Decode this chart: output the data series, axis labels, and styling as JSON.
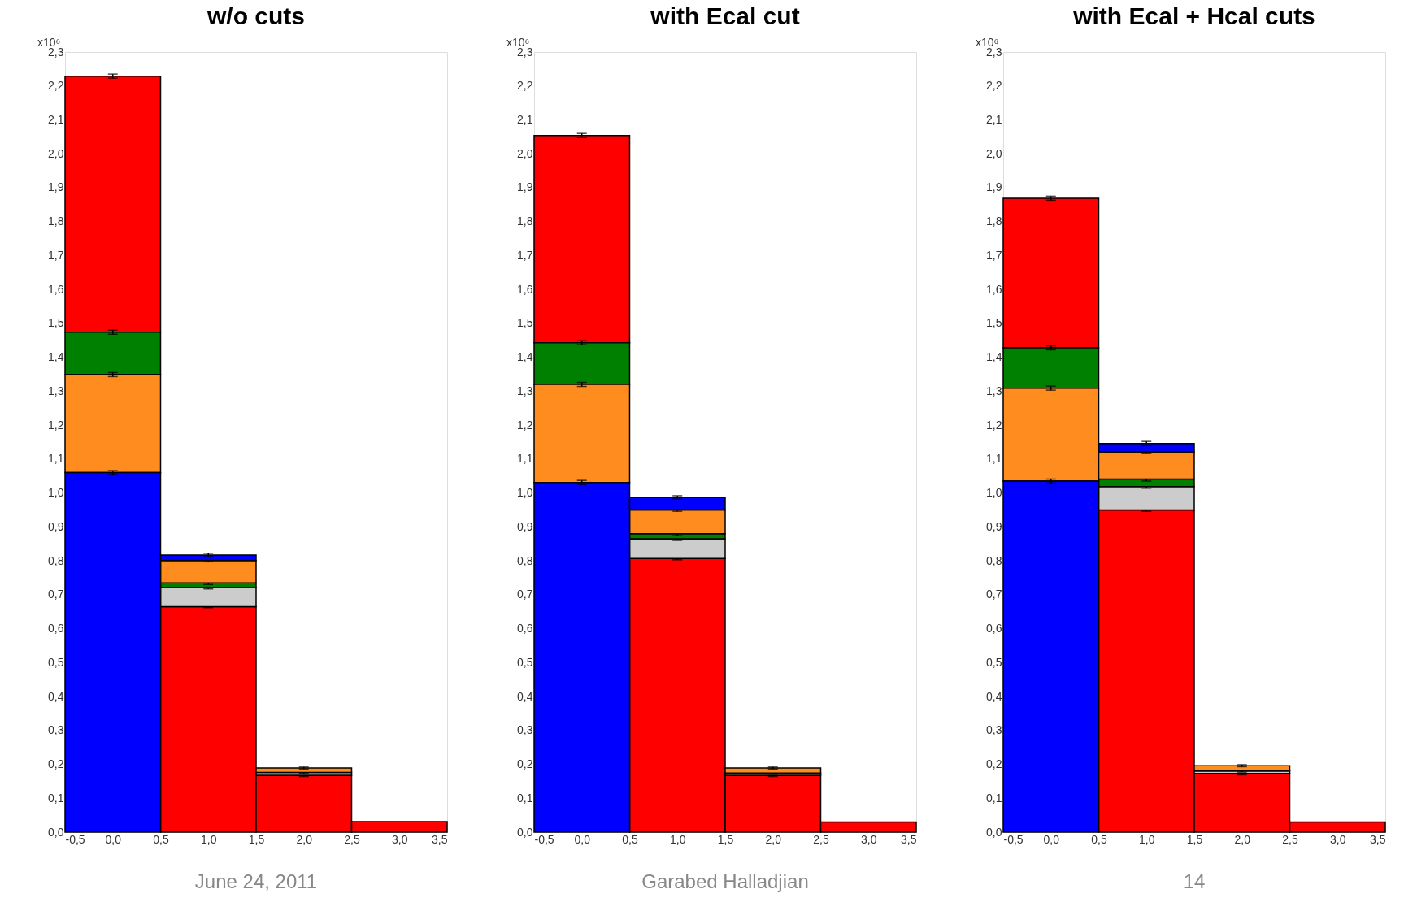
{
  "chart_data": [
    {
      "type": "histogram",
      "title": "w/o cuts",
      "ylabel": "x10⁶",
      "bins": [
        -0.5,
        0.5,
        1.5,
        2.5,
        3.5
      ],
      "xlim": [
        -0.5,
        3.5
      ],
      "xticks": [
        {
          "value": -0.5,
          "label": "-0,5"
        },
        {
          "value": 0,
          "label": "0,0"
        },
        {
          "value": 0.5,
          "label": "0,5"
        },
        {
          "value": 1,
          "label": "1,0"
        },
        {
          "value": 1.5,
          "label": "1,5"
        },
        {
          "value": 2,
          "label": "2,0"
        },
        {
          "value": 2.5,
          "label": "2,5"
        },
        {
          "value": 3,
          "label": "3,0"
        },
        {
          "value": 3.5,
          "label": "3,5"
        }
      ],
      "ylim": [
        0,
        2.3
      ],
      "yticks": [
        {
          "value": 0,
          "label": "0,0"
        },
        {
          "value": 0.1,
          "label": "0,1"
        },
        {
          "value": 0.2,
          "label": "0,2"
        },
        {
          "value": 0.3,
          "label": "0,3"
        },
        {
          "value": 0.4,
          "label": "0,4"
        },
        {
          "value": 0.5,
          "label": "0,5"
        },
        {
          "value": 0.6,
          "label": "0,6"
        },
        {
          "value": 0.7,
          "label": "0,7"
        },
        {
          "value": 0.8,
          "label": "0,8"
        },
        {
          "value": 0.9,
          "label": "0,9"
        },
        {
          "value": 1.0,
          "label": "1,0"
        },
        {
          "value": 1.1,
          "label": "1,1"
        },
        {
          "value": 1.2,
          "label": "1,2"
        },
        {
          "value": 1.3,
          "label": "1,3"
        },
        {
          "value": 1.4,
          "label": "1,4"
        },
        {
          "value": 1.5,
          "label": "1,5"
        },
        {
          "value": 1.6,
          "label": "1,6"
        },
        {
          "value": 1.7,
          "label": "1,7"
        },
        {
          "value": 1.8,
          "label": "1,8"
        },
        {
          "value": 1.9,
          "label": "1,9"
        },
        {
          "value": 2.0,
          "label": "2,0"
        },
        {
          "value": 2.1,
          "label": "2,1"
        },
        {
          "value": 2.2,
          "label": "2,2"
        },
        {
          "value": 2.3,
          "label": "2,3"
        }
      ],
      "series": [
        {
          "color": "#ff0000",
          "values": [
            0.755,
            0.665,
            0.168,
            0.031
          ],
          "base": [
            1.474,
            0,
            0,
            0
          ],
          "errors": [
            0.006,
            0.003,
            0.004,
            null
          ]
        },
        {
          "color": "#cccccc",
          "values": [
            null,
            0.056,
            0.008,
            null
          ],
          "base": [
            null,
            0.665,
            0.168,
            null
          ],
          "errors": [
            null,
            0.004,
            0.003,
            null
          ]
        },
        {
          "color": "#008000",
          "values": [
            0.125,
            0.014,
            null,
            null
          ],
          "base": [
            1.349,
            0.721,
            null,
            null
          ],
          "errors": [
            0.006,
            0.005,
            null,
            null
          ]
        },
        {
          "color": "#ff8c1e",
          "values": [
            0.289,
            0.066,
            0.013,
            null
          ],
          "base": [
            1.06,
            0.735,
            0.176,
            null
          ],
          "errors": [
            0.006,
            0.004,
            0.003,
            null
          ]
        },
        {
          "color": "#0000ff",
          "values": [
            1.06,
            0.016,
            null,
            null
          ],
          "base": [
            0,
            0.801,
            null,
            null
          ],
          "errors": [
            0.006,
            0.005,
            null,
            null
          ]
        }
      ],
      "annotations": [
        "June 24, 2011"
      ]
    },
    {
      "type": "histogram",
      "title": "with Ecal cut",
      "ylabel": "x10⁶",
      "bins": [
        -0.5,
        0.5,
        1.5,
        2.5,
        3.5
      ],
      "xlim": [
        -0.5,
        3.5
      ],
      "xticks": [
        {
          "value": -0.5,
          "label": "-0,5"
        },
        {
          "value": 0,
          "label": "0,0"
        },
        {
          "value": 0.5,
          "label": "0,5"
        },
        {
          "value": 1,
          "label": "1,0"
        },
        {
          "value": 1.5,
          "label": "1,5"
        },
        {
          "value": 2,
          "label": "2,0"
        },
        {
          "value": 2.5,
          "label": "2,5"
        },
        {
          "value": 3,
          "label": "3,0"
        },
        {
          "value": 3.5,
          "label": "3,5"
        }
      ],
      "ylim": [
        0,
        2.3
      ],
      "yticks": [
        {
          "value": 0,
          "label": "0,0"
        },
        {
          "value": 0.1,
          "label": "0,1"
        },
        {
          "value": 0.2,
          "label": "0,2"
        },
        {
          "value": 0.3,
          "label": "0,3"
        },
        {
          "value": 0.4,
          "label": "0,4"
        },
        {
          "value": 0.5,
          "label": "0,5"
        },
        {
          "value": 0.6,
          "label": "0,6"
        },
        {
          "value": 0.7,
          "label": "0,7"
        },
        {
          "value": 0.8,
          "label": "0,8"
        },
        {
          "value": 0.9,
          "label": "0,9"
        },
        {
          "value": 1.0,
          "label": "1,0"
        },
        {
          "value": 1.1,
          "label": "1,1"
        },
        {
          "value": 1.2,
          "label": "1,2"
        },
        {
          "value": 1.3,
          "label": "1,3"
        },
        {
          "value": 1.4,
          "label": "1,4"
        },
        {
          "value": 1.5,
          "label": "1,5"
        },
        {
          "value": 1.6,
          "label": "1,6"
        },
        {
          "value": 1.7,
          "label": "1,7"
        },
        {
          "value": 1.8,
          "label": "1,8"
        },
        {
          "value": 1.9,
          "label": "1,9"
        },
        {
          "value": 2.0,
          "label": "2,0"
        },
        {
          "value": 2.1,
          "label": "2,1"
        },
        {
          "value": 2.2,
          "label": "2,2"
        },
        {
          "value": 2.3,
          "label": "2,3"
        }
      ],
      "series": [
        {
          "color": "#ff0000",
          "values": [
            0.611,
            0.807,
            0.168,
            0.03
          ],
          "base": [
            1.443,
            0,
            0,
            0
          ],
          "errors": [
            0.006,
            0.004,
            0.004,
            null
          ]
        },
        {
          "color": "#cccccc",
          "values": [
            null,
            0.058,
            0.006,
            null
          ],
          "base": [
            null,
            0.807,
            0.168,
            null
          ],
          "errors": [
            null,
            0.005,
            0.003,
            null
          ]
        },
        {
          "color": "#008000",
          "values": [
            0.123,
            0.015,
            null,
            null
          ],
          "base": [
            1.32,
            0.865,
            null,
            null
          ],
          "errors": [
            0.006,
            0.006,
            null,
            null
          ]
        },
        {
          "color": "#ff8c1e",
          "values": [
            0.289,
            0.07,
            0.015,
            null
          ],
          "base": [
            1.031,
            0.88,
            0.174,
            null
          ],
          "errors": [
            0.006,
            0.004,
            0.003,
            null
          ]
        },
        {
          "color": "#0000ff",
          "values": [
            1.031,
            0.037,
            null,
            null
          ],
          "base": [
            0,
            0.95,
            null,
            null
          ],
          "errors": [
            0.006,
            0.005,
            null,
            null
          ]
        }
      ],
      "annotations": [
        "Garabed Halladjian"
      ]
    },
    {
      "type": "histogram",
      "title": "with Ecal + Hcal cuts",
      "ylabel": "x10⁶",
      "bins": [
        -0.5,
        0.5,
        1.5,
        2.5,
        3.5
      ],
      "xlim": [
        -0.5,
        3.5
      ],
      "xticks": [
        {
          "value": -0.5,
          "label": "-0,5"
        },
        {
          "value": 0,
          "label": "0,0"
        },
        {
          "value": 0.5,
          "label": "0,5"
        },
        {
          "value": 1,
          "label": "1,0"
        },
        {
          "value": 1.5,
          "label": "1,5"
        },
        {
          "value": 2,
          "label": "2,0"
        },
        {
          "value": 2.5,
          "label": "2,5"
        },
        {
          "value": 3,
          "label": "3,0"
        },
        {
          "value": 3.5,
          "label": "3,5"
        }
      ],
      "ylim": [
        0,
        2.3
      ],
      "yticks": [
        {
          "value": 0,
          "label": "0,0"
        },
        {
          "value": 0.1,
          "label": "0,1"
        },
        {
          "value": 0.2,
          "label": "0,2"
        },
        {
          "value": 0.3,
          "label": "0,3"
        },
        {
          "value": 0.4,
          "label": "0,4"
        },
        {
          "value": 0.5,
          "label": "0,5"
        },
        {
          "value": 0.6,
          "label": "0,6"
        },
        {
          "value": 0.7,
          "label": "0,7"
        },
        {
          "value": 0.8,
          "label": "0,8"
        },
        {
          "value": 0.9,
          "label": "0,9"
        },
        {
          "value": 1.0,
          "label": "1,0"
        },
        {
          "value": 1.1,
          "label": "1,1"
        },
        {
          "value": 1.2,
          "label": "1,2"
        },
        {
          "value": 1.3,
          "label": "1,3"
        },
        {
          "value": 1.4,
          "label": "1,4"
        },
        {
          "value": 1.5,
          "label": "1,5"
        },
        {
          "value": 1.6,
          "label": "1,6"
        },
        {
          "value": 1.7,
          "label": "1,7"
        },
        {
          "value": 1.8,
          "label": "1,8"
        },
        {
          "value": 1.9,
          "label": "1,9"
        },
        {
          "value": 2.0,
          "label": "2,0"
        },
        {
          "value": 2.1,
          "label": "2,1"
        },
        {
          "value": 2.2,
          "label": "2,2"
        },
        {
          "value": 2.3,
          "label": "2,3"
        }
      ],
      "series": [
        {
          "color": "#ff0000",
          "values": [
            0.441,
            0.95,
            0.173,
            0.03
          ],
          "base": [
            1.428,
            0,
            0,
            0
          ],
          "errors": [
            0.006,
            0.004,
            0.004,
            null
          ]
        },
        {
          "color": "#cccccc",
          "values": [
            null,
            0.069,
            0.007,
            null
          ],
          "base": [
            null,
            0.95,
            0.173,
            null
          ],
          "errors": [
            null,
            0.005,
            0.003,
            null
          ]
        },
        {
          "color": "#008000",
          "values": [
            0.119,
            0.022,
            null,
            null
          ],
          "base": [
            1.309,
            1.019,
            null,
            null
          ],
          "errors": [
            0.006,
            0.006,
            null,
            null
          ]
        },
        {
          "color": "#ff8c1e",
          "values": [
            0.274,
            0.08,
            0.016,
            null
          ],
          "base": [
            1.035,
            1.041,
            0.18,
            null
          ],
          "errors": [
            0.006,
            0.005,
            0.003,
            null
          ]
        },
        {
          "color": "#0000ff",
          "values": [
            1.035,
            0.025,
            null,
            null
          ],
          "base": [
            0,
            1.121,
            null,
            null
          ],
          "errors": [
            0.006,
            0.006,
            null,
            null
          ]
        }
      ],
      "annotations": [
        "14"
      ]
    }
  ]
}
